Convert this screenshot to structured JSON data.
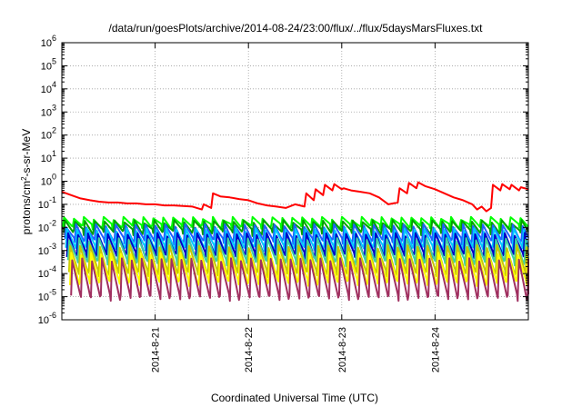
{
  "chart_data": {
    "type": "line",
    "title": "/data/run/goesPlots/archive/2014-08-24/23:00/flux/../flux/5daysMarsFluxes.txt",
    "xlabel": "Coordinated Universal Time (UTC)",
    "ylabel": {
      "main": "protons/cm",
      "sup": "2",
      "rest": "-s-sr-MeV"
    },
    "x_range_days": [
      0.0,
      5.0
    ],
    "x_ticks": [
      {
        "label": "2014-8-21",
        "day": 1.0
      },
      {
        "label": "2014-8-22",
        "day": 2.0
      },
      {
        "label": "2014-8-23",
        "day": 3.0
      },
      {
        "label": "2014-8-24",
        "day": 4.0
      }
    ],
    "y_scale": "log",
    "y_range": [
      1e-06,
      1000000.0
    ],
    "y_ticks": [
      {
        "base": "10",
        "exp": "6",
        "value": 1000000.0
      },
      {
        "base": "10",
        "exp": "5",
        "value": 100000.0
      },
      {
        "base": "10",
        "exp": "4",
        "value": 10000.0
      },
      {
        "base": "10",
        "exp": "3",
        "value": 1000.0
      },
      {
        "base": "10",
        "exp": "2",
        "value": 100.0
      },
      {
        "base": "10",
        "exp": "1",
        "value": 10.0
      },
      {
        "base": "10",
        "exp": "0",
        "value": 1.0
      },
      {
        "base": "10",
        "exp": "-1",
        "value": 0.1
      },
      {
        "base": "10",
        "exp": "-2",
        "value": 0.01
      },
      {
        "base": "10",
        "exp": "-3",
        "value": 0.001
      },
      {
        "base": "10",
        "exp": "-4",
        "value": 0.0001
      },
      {
        "base": "10",
        "exp": "-5",
        "value": 1e-05
      },
      {
        "base": "10",
        "exp": "-6",
        "value": 1e-06
      }
    ],
    "grid": true,
    "series": [
      {
        "color": "#ff0000",
        "x": [
          0.0,
          0.1,
          0.2,
          0.3,
          0.4,
          0.5,
          0.6,
          0.7,
          0.8,
          0.9,
          1.0,
          1.1,
          1.2,
          1.3,
          1.4,
          1.5,
          1.52,
          1.6,
          1.62,
          1.7,
          1.8,
          1.9,
          2.0,
          2.1,
          2.2,
          2.3,
          2.4,
          2.5,
          2.6,
          2.62,
          2.7,
          2.72,
          2.8,
          2.82,
          2.9,
          2.92,
          3.0,
          3.02,
          3.1,
          3.2,
          3.3,
          3.4,
          3.5,
          3.6,
          3.62,
          3.7,
          3.72,
          3.8,
          3.82,
          3.9,
          4.0,
          4.1,
          4.2,
          4.3,
          4.4,
          4.45,
          4.5,
          4.55,
          4.6,
          4.62,
          4.7,
          4.72,
          4.8,
          4.82,
          4.9,
          4.92,
          5.0
        ],
        "y": [
          0.35,
          0.25,
          0.18,
          0.15,
          0.13,
          0.12,
          0.12,
          0.11,
          0.11,
          0.1,
          0.1,
          0.09,
          0.09,
          0.085,
          0.08,
          0.06,
          0.1,
          0.07,
          0.3,
          0.22,
          0.2,
          0.17,
          0.15,
          0.11,
          0.09,
          0.08,
          0.07,
          0.1,
          0.08,
          0.3,
          0.15,
          0.45,
          0.25,
          0.7,
          0.4,
          0.75,
          0.45,
          0.5,
          0.4,
          0.35,
          0.3,
          0.2,
          0.1,
          0.12,
          0.5,
          0.3,
          0.85,
          0.5,
          0.9,
          0.6,
          0.45,
          0.3,
          0.2,
          0.15,
          0.1,
          0.06,
          0.08,
          0.05,
          0.07,
          0.7,
          0.4,
          0.75,
          0.45,
          0.7,
          0.4,
          0.55,
          0.45
        ]
      },
      {
        "color": "#00ff00",
        "base": 0.01,
        "peak": 0.025,
        "trough": 0.01
      },
      {
        "color": "#00a000",
        "base": 0.009,
        "peak": 0.018,
        "trough": 0.006
      },
      {
        "color": "#2060ff",
        "base": 0.005,
        "peak": 0.012,
        "trough": 0.0025
      },
      {
        "color": "#00c8ff",
        "base": 0.003,
        "peak": 0.008,
        "trough": 0.0012
      },
      {
        "color": "#0000c8",
        "base": 0.0015,
        "peak": 0.005,
        "trough": 0.0006
      },
      {
        "color": "#40d0a0",
        "base": 0.0009,
        "peak": 0.003,
        "trough": 0.0003
      },
      {
        "color": "#c8c800",
        "base": 0.0004,
        "peak": 0.0015,
        "trough": 0.0001
      },
      {
        "color": "#ffff00",
        "base": 0.0002,
        "peak": 0.0007,
        "trough": 4e-05
      },
      {
        "color": "#a03060",
        "base": 8e-05,
        "peak": 0.0004,
        "trough": 9e-06
      }
    ]
  }
}
